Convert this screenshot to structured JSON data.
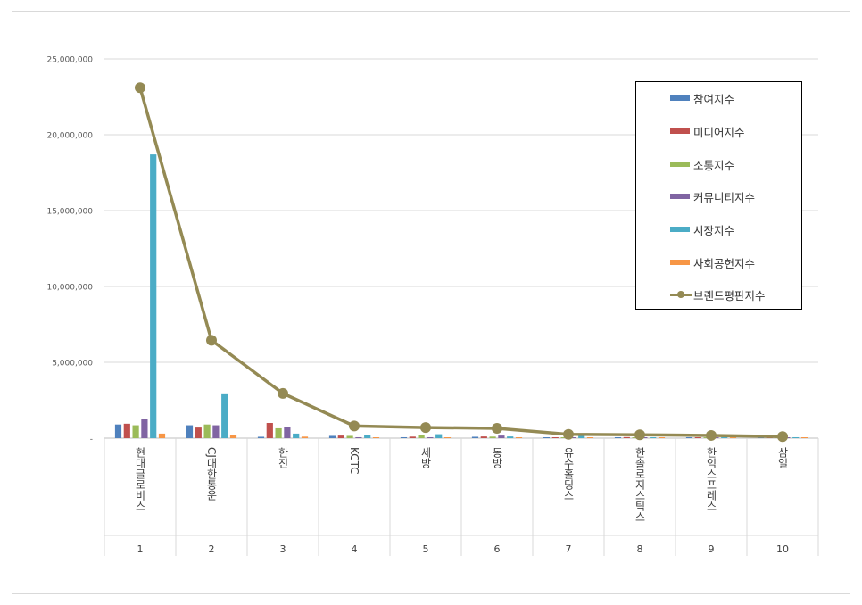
{
  "chart_data": {
    "type": "bar",
    "categories": [
      "현대글로비스",
      "CJ대한통운",
      "한진",
      "KCTC",
      "세방",
      "동방",
      "유수홀딩스",
      "한솔로지스틱스",
      "한익스프레스",
      "삼일"
    ],
    "ranks": [
      "1",
      "2",
      "3",
      "4",
      "5",
      "6",
      "7",
      "8",
      "9",
      "10"
    ],
    "ylim": [
      0,
      25000000
    ],
    "yticks": [
      "-",
      "5,000,000",
      "10,000,000",
      "15,000,000",
      "20,000,000",
      "25,000,000"
    ],
    "series": [
      {
        "name": "참여지수",
        "type": "bar",
        "color": "#4f81bd",
        "values": [
          900000,
          850000,
          90000,
          150000,
          60000,
          90000,
          40000,
          60000,
          60000,
          30000
        ]
      },
      {
        "name": "미디어지수",
        "type": "bar",
        "color": "#c0504d",
        "values": [
          950000,
          700000,
          1000000,
          170000,
          100000,
          110000,
          50000,
          70000,
          60000,
          20000
        ]
      },
      {
        "name": "소통지수",
        "type": "bar",
        "color": "#9bbb59",
        "values": [
          850000,
          900000,
          650000,
          150000,
          180000,
          100000,
          40000,
          40000,
          40000,
          20000
        ]
      },
      {
        "name": "커뮤니티지수",
        "type": "bar",
        "color": "#8064a2",
        "values": [
          1250000,
          850000,
          750000,
          60000,
          60000,
          170000,
          30000,
          30000,
          50000,
          20000
        ]
      },
      {
        "name": "시장지수",
        "type": "bar",
        "color": "#4bacc6",
        "values": [
          18700000,
          2950000,
          300000,
          200000,
          260000,
          110000,
          200000,
          60000,
          70000,
          60000
        ]
      },
      {
        "name": "사회공헌지수",
        "type": "bar",
        "color": "#f79646",
        "values": [
          300000,
          200000,
          100000,
          40000,
          40000,
          30000,
          30000,
          20000,
          20000,
          20000
        ]
      },
      {
        "name": "브랜드평판지수",
        "type": "line",
        "color": "#948a54",
        "values": [
          23100000,
          6450000,
          2950000,
          800000,
          700000,
          650000,
          250000,
          220000,
          180000,
          100000
        ]
      }
    ],
    "grid": true,
    "legend": "top-right"
  }
}
